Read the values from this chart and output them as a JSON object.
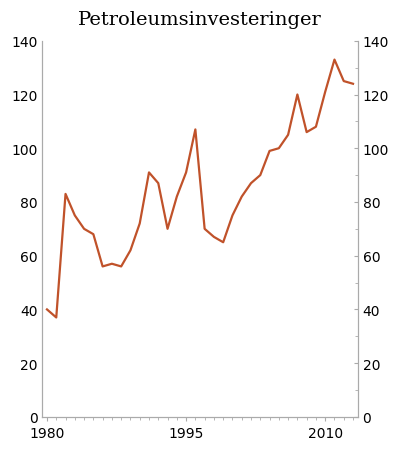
{
  "title": "Petroleumsinvesteringer",
  "years": [
    1980,
    1981,
    1982,
    1983,
    1984,
    1985,
    1986,
    1987,
    1988,
    1989,
    1990,
    1991,
    1992,
    1993,
    1994,
    1995,
    1996,
    1997,
    1998,
    1999,
    2000,
    2001,
    2002,
    2003,
    2004,
    2005,
    2006,
    2007,
    2008,
    2009,
    2010,
    2011,
    2012,
    2013
  ],
  "values": [
    40,
    37,
    83,
    75,
    70,
    68,
    56,
    57,
    56,
    62,
    72,
    91,
    87,
    70,
    82,
    91,
    107,
    70,
    67,
    65,
    75,
    82,
    87,
    90,
    99,
    100,
    105,
    120,
    106,
    108,
    121,
    133,
    125,
    124
  ],
  "line_color": "#C0522A",
  "ylim": [
    0,
    140
  ],
  "yticks": [
    0,
    20,
    40,
    60,
    80,
    100,
    120,
    140
  ],
  "xlim": [
    1979.5,
    2013.5
  ],
  "xticks": [
    1980,
    1995,
    2010
  ],
  "xtick_labels": [
    "1980",
    "1995",
    "2010"
  ],
  "title_fontsize": 14,
  "tick_fontsize": 10,
  "background_color": "#ffffff",
  "line_width": 1.6,
  "spine_color": "#aaaaaa"
}
